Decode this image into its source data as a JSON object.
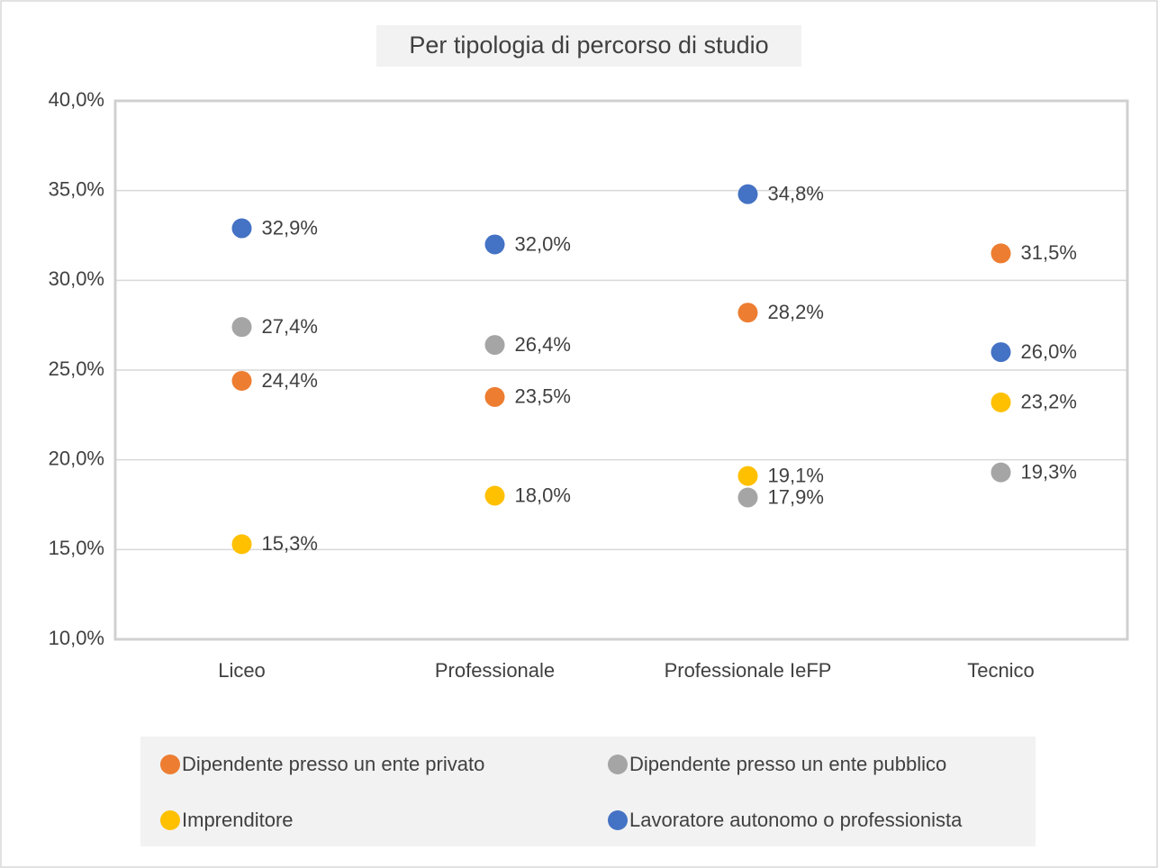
{
  "chart_data": {
    "type": "dot",
    "title": "Per tipologia di percorso di studio",
    "categories": [
      "Liceo",
      "Professionale",
      "Professionale IeFP",
      "Tecnico"
    ],
    "series": [
      {
        "name": "Dipendente presso un ente privato",
        "color": "#ED7D31",
        "values": [
          24.4,
          23.5,
          28.2,
          31.5
        ],
        "value_labels": [
          "24,4%",
          "23,5%",
          "28,2%",
          "31,5%"
        ]
      },
      {
        "name": "Dipendente presso un ente pubblico",
        "color": "#A5A5A5",
        "values": [
          27.4,
          26.4,
          17.9,
          19.3
        ],
        "value_labels": [
          "27,4%",
          "26,4%",
          "17,9%",
          "19,3%"
        ]
      },
      {
        "name": "Imprenditore",
        "color": "#FFC000",
        "values": [
          15.3,
          18.0,
          19.1,
          23.2
        ],
        "value_labels": [
          "15,3%",
          "18,0%",
          "19,1%",
          "23,2%"
        ]
      },
      {
        "name": "Lavoratore autonomo o professionista",
        "color": "#4472C4",
        "values": [
          32.9,
          32.0,
          34.8,
          26.0
        ],
        "value_labels": [
          "32,9%",
          "32,0%",
          "34,8%",
          "26,0%"
        ]
      }
    ],
    "ylim": [
      10,
      40
    ],
    "yticks": [
      {
        "value": 10,
        "label": "10,0%"
      },
      {
        "value": 15,
        "label": "15,0%"
      },
      {
        "value": 20,
        "label": "20,0%"
      },
      {
        "value": 25,
        "label": "25,0%"
      },
      {
        "value": 30,
        "label": "30,0%"
      },
      {
        "value": 35,
        "label": "35,0%"
      },
      {
        "value": 40,
        "label": "40,0%"
      }
    ],
    "grid": true,
    "legend": "bottom"
  }
}
